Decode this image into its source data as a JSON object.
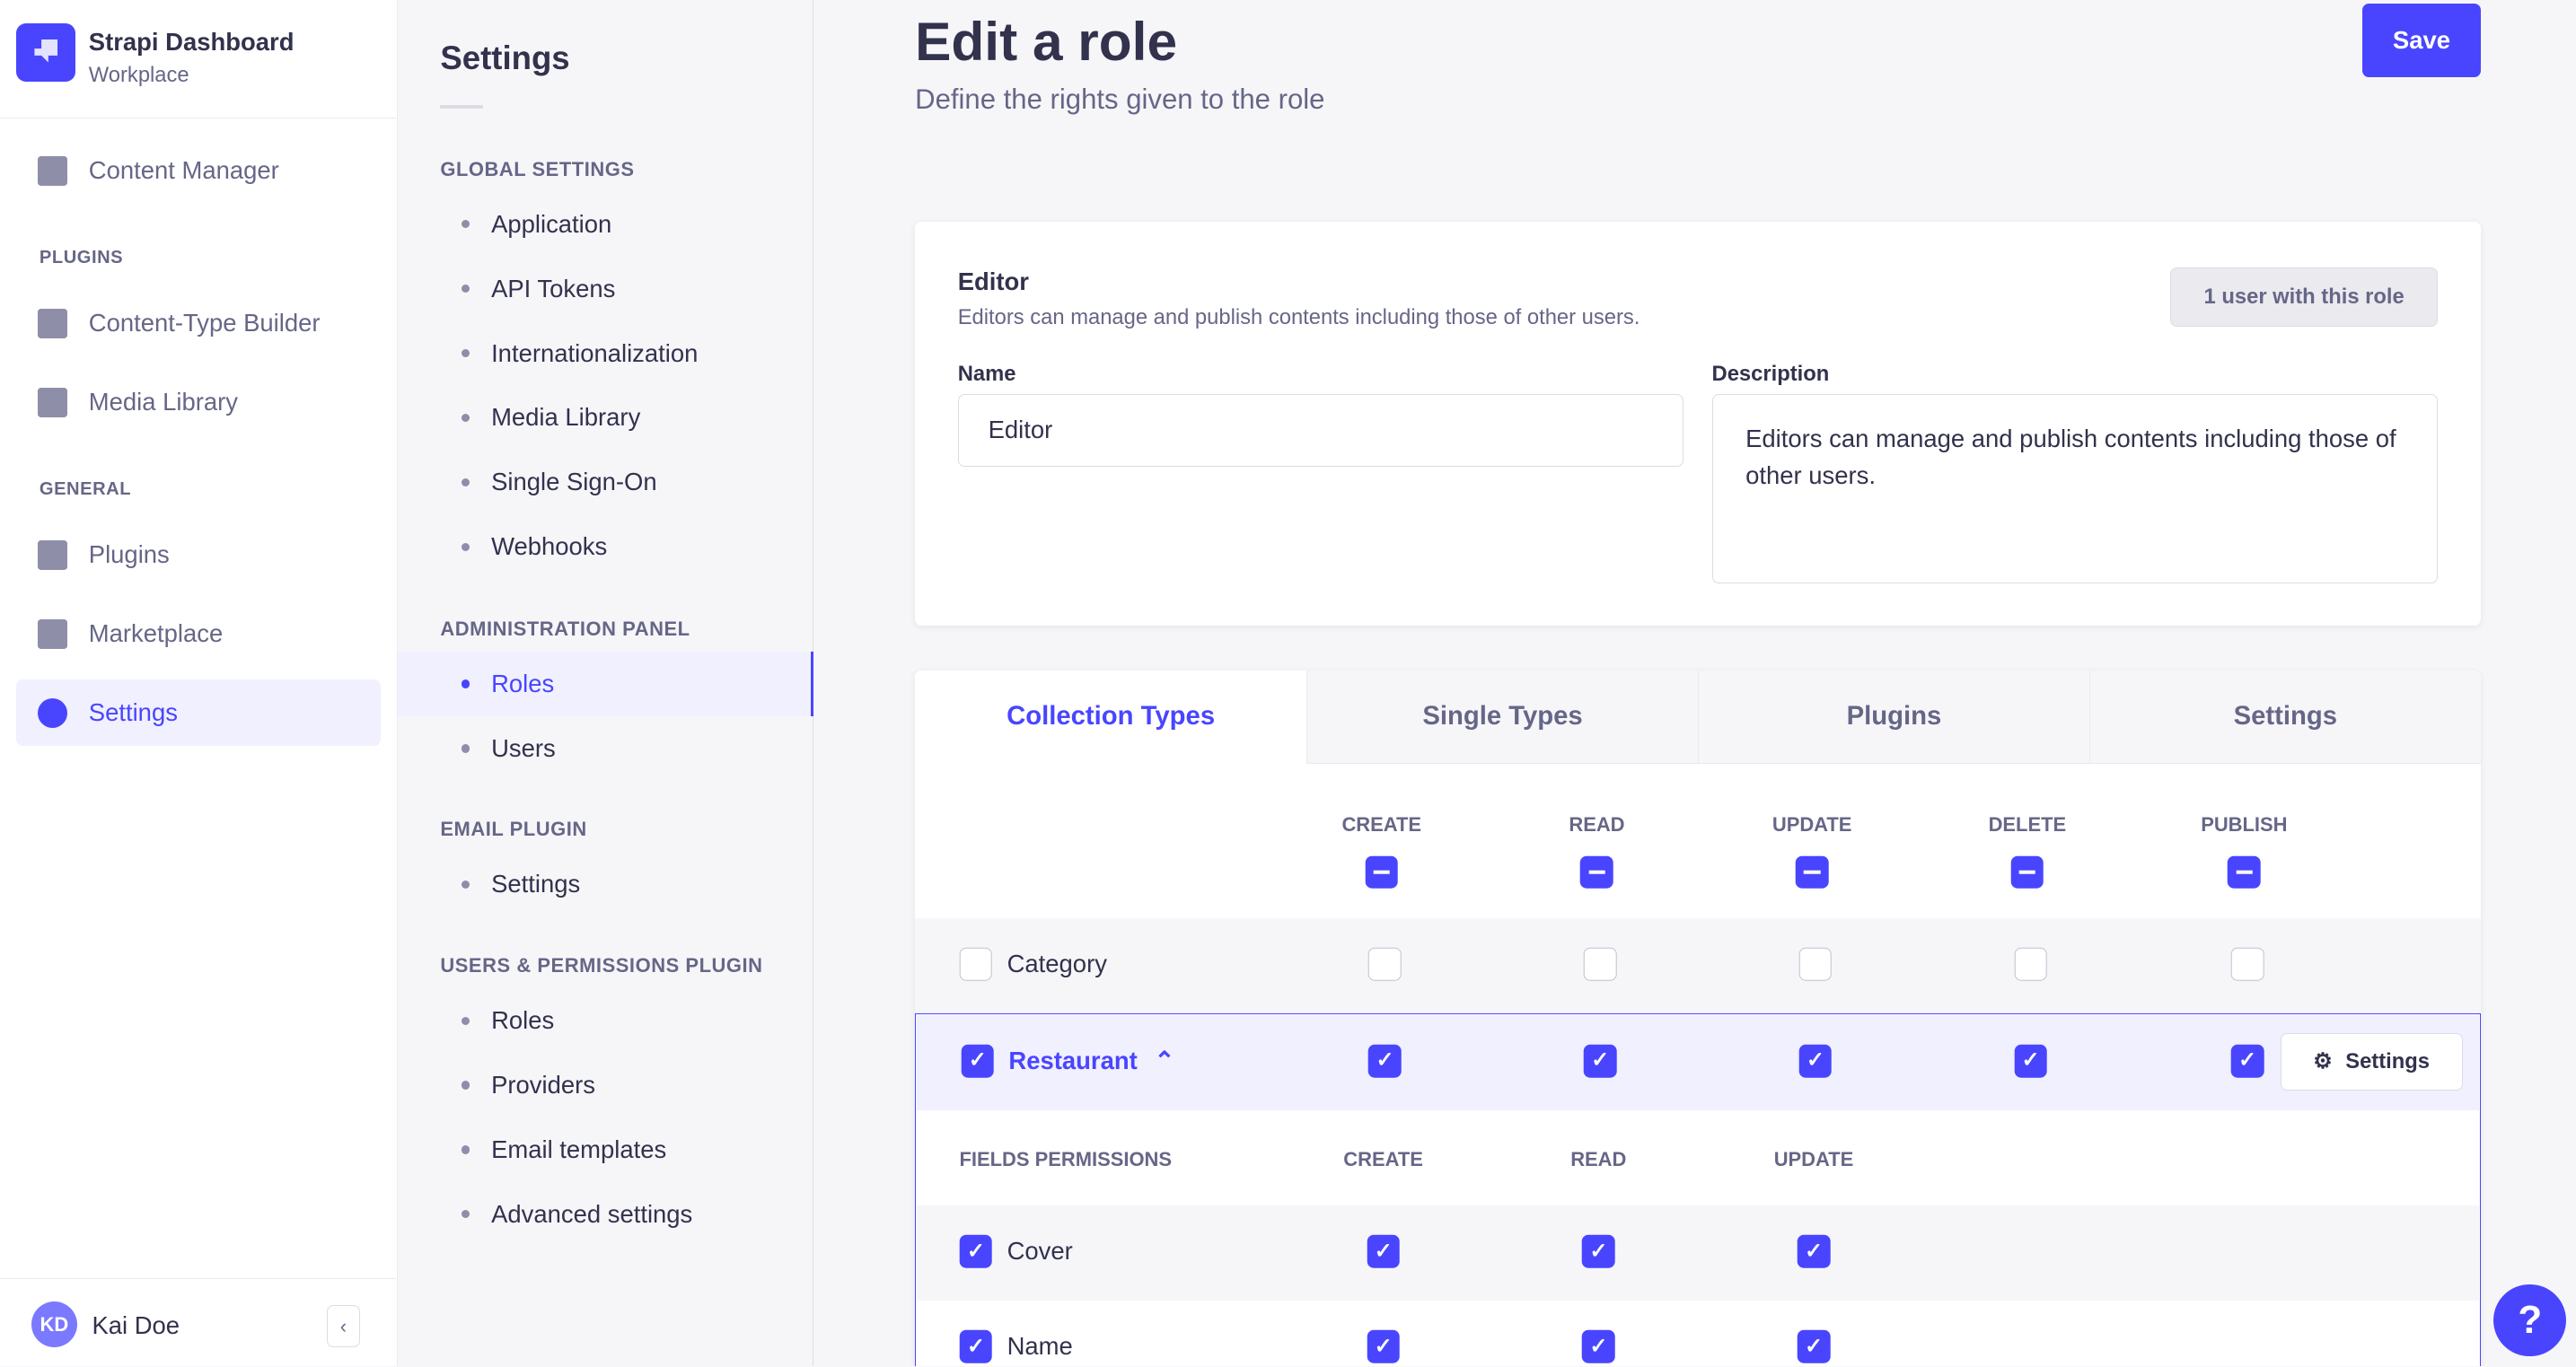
{
  "app": {
    "title": "Strapi Dashboard",
    "subtitle": "Workplace"
  },
  "nav": {
    "content_manager": "Content Manager",
    "plugins_heading": "PLUGINS",
    "content_type_builder": "Content-Type Builder",
    "media_library": "Media Library",
    "general_heading": "GENERAL",
    "plugins": "Plugins",
    "marketplace": "Marketplace",
    "settings": "Settings"
  },
  "user": {
    "initials": "KD",
    "name": "Kai Doe",
    "collapse": "‹"
  },
  "subnav": {
    "title": "Settings",
    "groups": [
      {
        "heading": "GLOBAL SETTINGS",
        "items": [
          "Application",
          "API Tokens",
          "Internationalization",
          "Media Library",
          "Single Sign-On",
          "Webhooks"
        ]
      },
      {
        "heading": "ADMINISTRATION PANEL",
        "items": [
          "Roles",
          "Users"
        ]
      },
      {
        "heading": "EMAIL PLUGIN",
        "items": [
          "Settings"
        ]
      },
      {
        "heading": "USERS & PERMISSIONS PLUGIN",
        "items": [
          "Roles",
          "Providers",
          "Email templates",
          "Advanced settings"
        ]
      }
    ],
    "active": "Roles"
  },
  "page": {
    "title": "Edit a role",
    "subtitle": "Define the rights given to the role",
    "save": "Save"
  },
  "role": {
    "name": "Editor",
    "description": "Editors can manage and publish contents including those of other users.",
    "users_badge": "1 user with this role",
    "name_label": "Name",
    "name_value": "Editor",
    "description_label": "Description",
    "description_value": "Editors can manage and publish contents including those of other users."
  },
  "tabs": [
    "Collection Types",
    "Single Types",
    "Plugins",
    "Settings"
  ],
  "permissions": {
    "columns": [
      "CREATE",
      "READ",
      "UPDATE",
      "DELETE",
      "PUBLISH"
    ],
    "rows": [
      {
        "label": "Category",
        "all": false,
        "values": [
          false,
          false,
          false,
          false,
          false
        ]
      },
      {
        "label": "Restaurant",
        "all": true,
        "expanded": true,
        "values": [
          true,
          true,
          true,
          true,
          true
        ],
        "settings": "Settings"
      }
    ],
    "fields_heading": "FIELDS PERMISSIONS",
    "field_columns": [
      "CREATE",
      "READ",
      "UPDATE"
    ],
    "fields": [
      {
        "label": "Cover",
        "all": true,
        "values": [
          true,
          true,
          true
        ]
      },
      {
        "label": "Name",
        "all": true,
        "values": [
          true,
          true,
          true
        ]
      }
    ]
  },
  "help": "?",
  "colors": {
    "primary": "#4945ff",
    "text": "#32324d",
    "muted": "#666687",
    "bg": "#f6f6f9"
  }
}
